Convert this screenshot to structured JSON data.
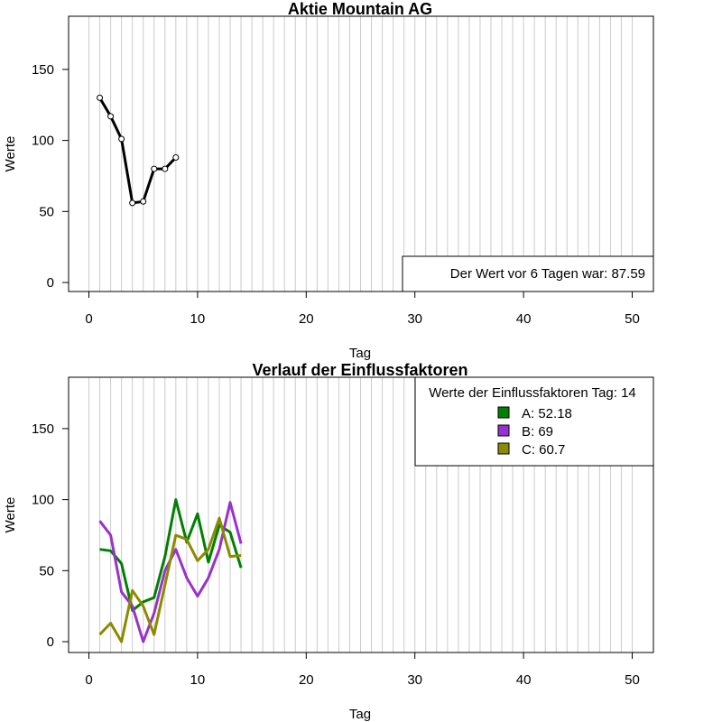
{
  "chart_data": [
    {
      "type": "line",
      "title": "Aktie  Mountain AG",
      "xlabel": "Tag",
      "ylabel": "Werte",
      "xlim": [
        0,
        50
      ],
      "ylim": [
        0,
        175
      ],
      "x_ticks": [
        0,
        10,
        20,
        30,
        40,
        50
      ],
      "y_ticks": [
        0,
        50,
        100,
        150
      ],
      "grid": "vertical lines at every integer day",
      "series": [
        {
          "color": "#000000",
          "x": [
            1,
            2,
            3,
            4,
            5,
            6,
            7,
            8
          ],
          "values": [
            130,
            117,
            101,
            56,
            57,
            80,
            80,
            88
          ]
        }
      ],
      "annotation": "Der Wert vor 6 Tagen war: 87.59"
    },
    {
      "type": "line",
      "title": "Verlauf der Einflussfaktoren",
      "xlabel": "Tag",
      "ylabel": "Werte",
      "xlim": [
        0,
        50
      ],
      "ylim": [
        0,
        175
      ],
      "x_ticks": [
        0,
        10,
        20,
        30,
        40,
        50
      ],
      "y_ticks": [
        0,
        50,
        100,
        150
      ],
      "grid": "vertical lines at every integer day",
      "legend": {
        "title": "Werte der Einflussfaktoren Tag: 14",
        "position": "top-right",
        "entries": [
          "A: 52.18",
          "B: 69",
          "C: 60.7"
        ]
      },
      "series": [
        {
          "color": "#008000",
          "x": [
            1,
            2,
            3,
            4,
            5,
            6,
            7,
            8,
            9,
            10,
            11,
            12,
            13,
            14
          ],
          "values": [
            65,
            64,
            55,
            22,
            28,
            31,
            60,
            100,
            70,
            90,
            56,
            82,
            77,
            52
          ]
        },
        {
          "color": "#9932CC",
          "x": [
            1,
            2,
            3,
            4,
            5,
            6,
            7,
            8,
            9,
            10,
            11,
            12,
            13,
            14
          ],
          "values": [
            85,
            75,
            35,
            25,
            0,
            20,
            50,
            65,
            45,
            32,
            45,
            65,
            98,
            69
          ]
        },
        {
          "color": "#8B8B00",
          "x": [
            1,
            2,
            3,
            4,
            5,
            6,
            7,
            8,
            9,
            10,
            11,
            12,
            13,
            14
          ],
          "values": [
            5,
            13,
            0,
            36,
            25,
            5,
            40,
            75,
            72,
            57,
            65,
            87,
            60,
            60.7
          ]
        }
      ]
    }
  ]
}
